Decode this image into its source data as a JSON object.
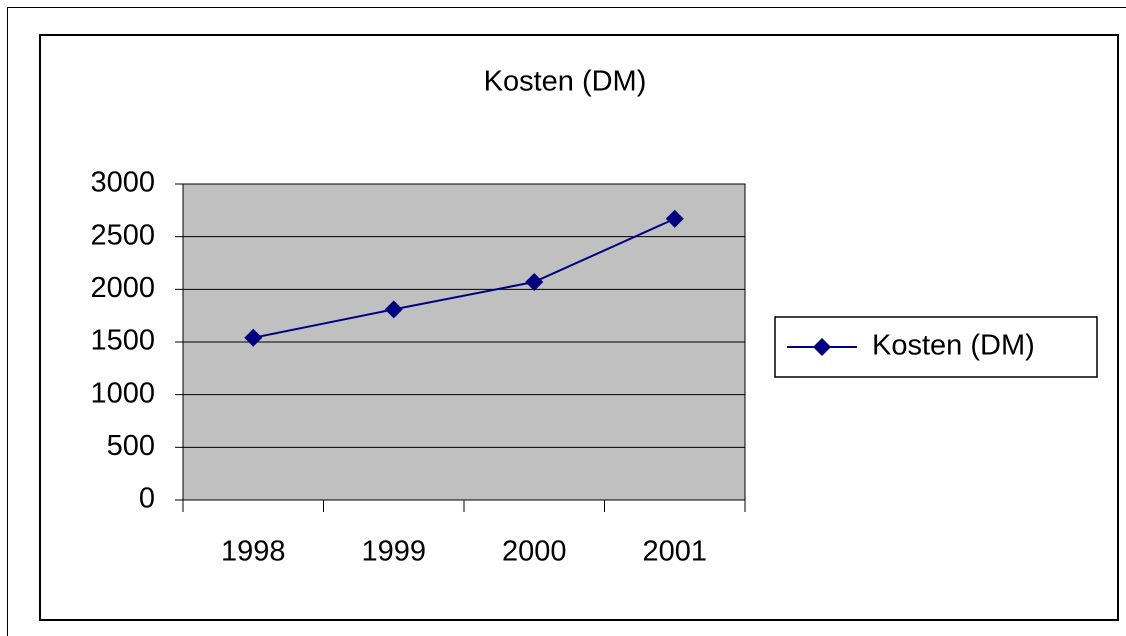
{
  "chart_data": {
    "type": "line",
    "title": "Kosten (DM)",
    "categories": [
      "1998",
      "1999",
      "2000",
      "2001"
    ],
    "series": [
      {
        "name": "Kosten (DM)",
        "color": "#000080",
        "values": [
          1540,
          1810,
          2070,
          2670
        ]
      }
    ],
    "ylim": [
      0,
      3000
    ],
    "yticks": [
      0,
      500,
      1000,
      1500,
      2000,
      2500,
      3000
    ],
    "grid": true,
    "legend": "right",
    "plot_background": "#c0c0c0"
  }
}
